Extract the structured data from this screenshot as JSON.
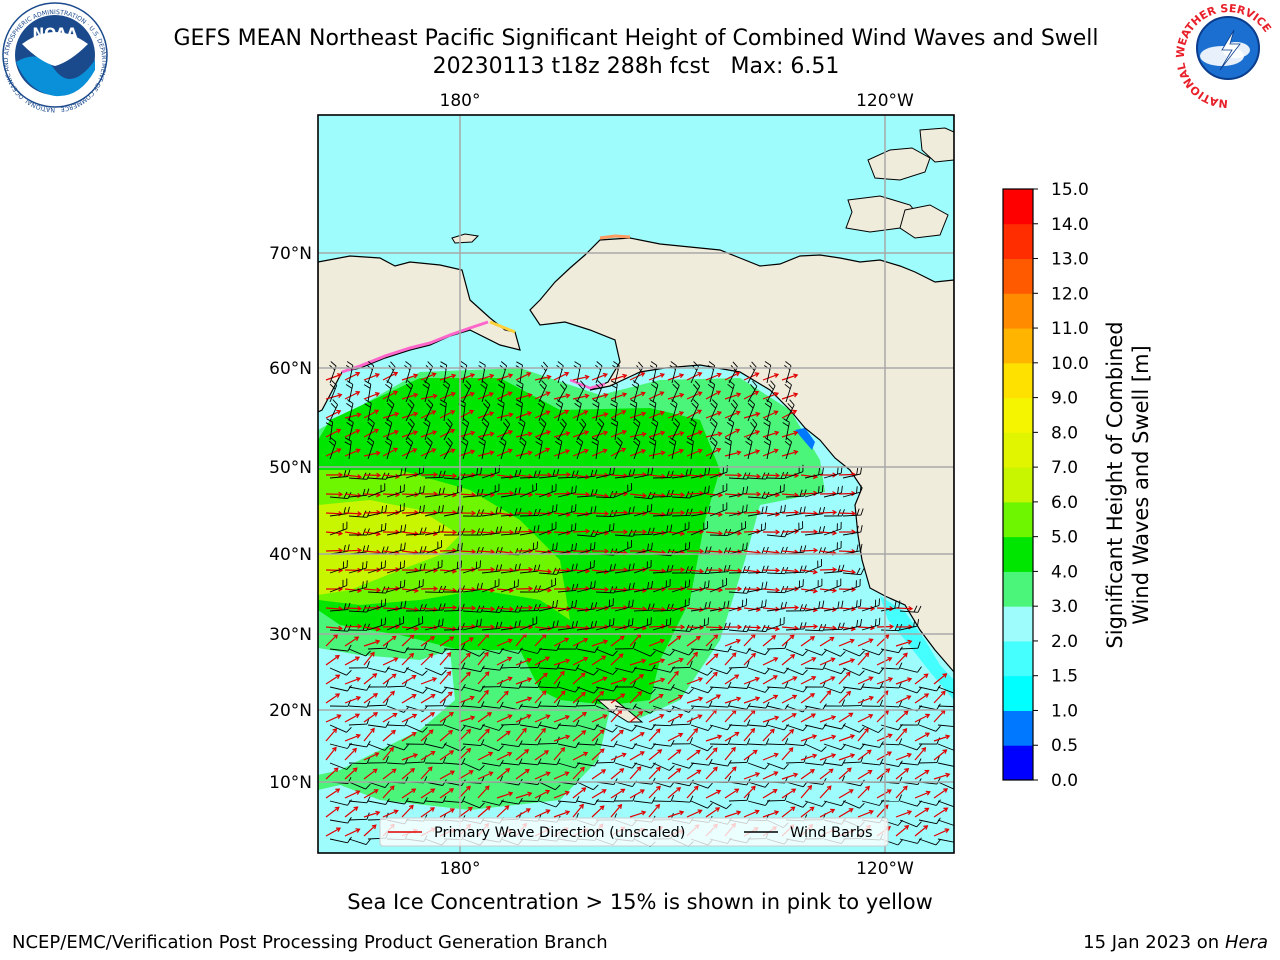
{
  "header": {
    "title": "GEFS MEAN Northeast Pacific Significant Height of Combined Wind Waves and Swell",
    "subtitle": "20230113 t18z 288h fcst   Max: 6.51"
  },
  "logos": {
    "noaa_text": "NOAA",
    "noaa_ring_text": "NATIONAL OCEANIC AND ATMOSPHERIC ADMINISTRATION · U.S. DEPARTMENT OF COMMERCE",
    "nws_ring_text": "NATIONAL WEATHER SERVICE"
  },
  "map": {
    "top_lon_labels": [
      "180°",
      "120°W"
    ],
    "bottom_lon_labels": [
      "180°",
      "120°W"
    ],
    "lat_labels": [
      "70°N",
      "60°N",
      "50°N",
      "40°N",
      "30°N",
      "20°N",
      "10°N"
    ],
    "colors": {
      "land": "#efecdc",
      "ocean_low": "#9ffcfc",
      "wave_3_4": "#4af57a",
      "wave_4_5": "#00e600",
      "wave_5_6": "#6ef500",
      "wave_6_7": "#c8f500",
      "barb": "#000000",
      "wave_dir": "#e00000",
      "ice_pink": "#ff66cc",
      "ice_yellow": "#ffd23c"
    }
  },
  "legend": {
    "wave_label": "Primary Wave Direction (unscaled)",
    "barb_label": "Wind Barbs"
  },
  "colorbar": {
    "title_line1": "Significant Height of Combined",
    "title_line2": "Wind Waves and Swell [m]",
    "levels": [
      0.0,
      0.5,
      1.0,
      1.5,
      2.0,
      3.0,
      4.0,
      5.0,
      6.0,
      7.0,
      8.0,
      9.0,
      10.0,
      11.0,
      12.0,
      13.0,
      14.0,
      15.0
    ],
    "tick_labels": [
      "0.0",
      "0.5",
      "1.0",
      "1.5",
      "2.0",
      "3.0",
      "4.0",
      "5.0",
      "6.0",
      "7.0",
      "8.0",
      "9.0",
      "10.0",
      "11.0",
      "12.0",
      "13.0",
      "14.0",
      "15.0"
    ],
    "colors": [
      "#0000ff",
      "#0078ff",
      "#00ffff",
      "#45ffff",
      "#9ffcfc",
      "#4af57a",
      "#00e600",
      "#6ef500",
      "#c8f500",
      "#e1f500",
      "#f5f500",
      "#ffe100",
      "#ffb400",
      "#ff8c00",
      "#ff5a00",
      "#ff2d00",
      "#ff0000"
    ]
  },
  "footer": {
    "note": "Sea Ice Concentration > 15% is shown in pink to yellow",
    "credit_left": "NCEP/EMC/Verification Post Processing Product Generation Branch",
    "credit_date": "15 Jan 2023 on ",
    "credit_host": "Hera"
  }
}
